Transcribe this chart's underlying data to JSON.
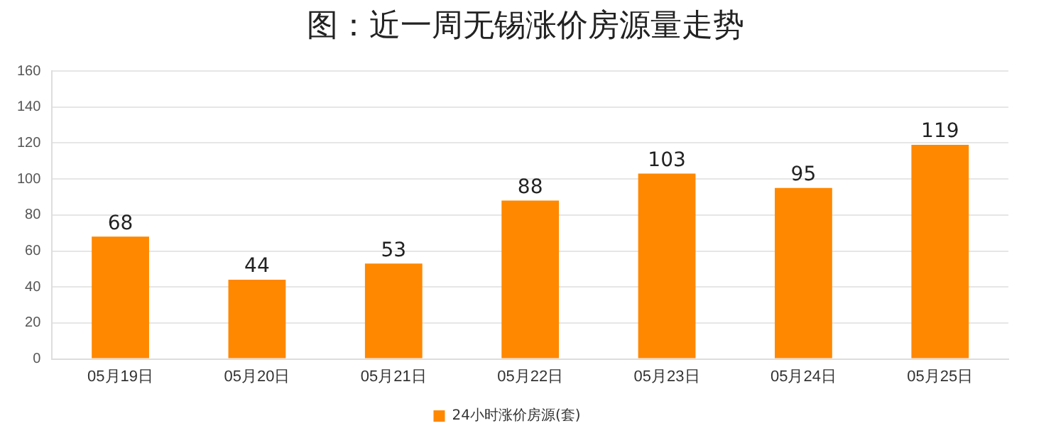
{
  "chart_data": {
    "type": "bar",
    "title": "图：近一周无锡涨价房源量走势",
    "categories": [
      "05月19日",
      "05月20日",
      "05月21日",
      "05月22日",
      "05月23日",
      "05月24日",
      "05月25日"
    ],
    "series": [
      {
        "name": "24小时涨价房源(套)",
        "color": "#ff8800",
        "values": [
          68,
          44,
          53,
          88,
          103,
          95,
          119
        ]
      }
    ],
    "ylim": [
      0,
      160
    ],
    "yticks": [
      0,
      20,
      40,
      60,
      80,
      100,
      120,
      140,
      160
    ],
    "grid": "y",
    "legend": "bottom",
    "data_labels": true
  }
}
